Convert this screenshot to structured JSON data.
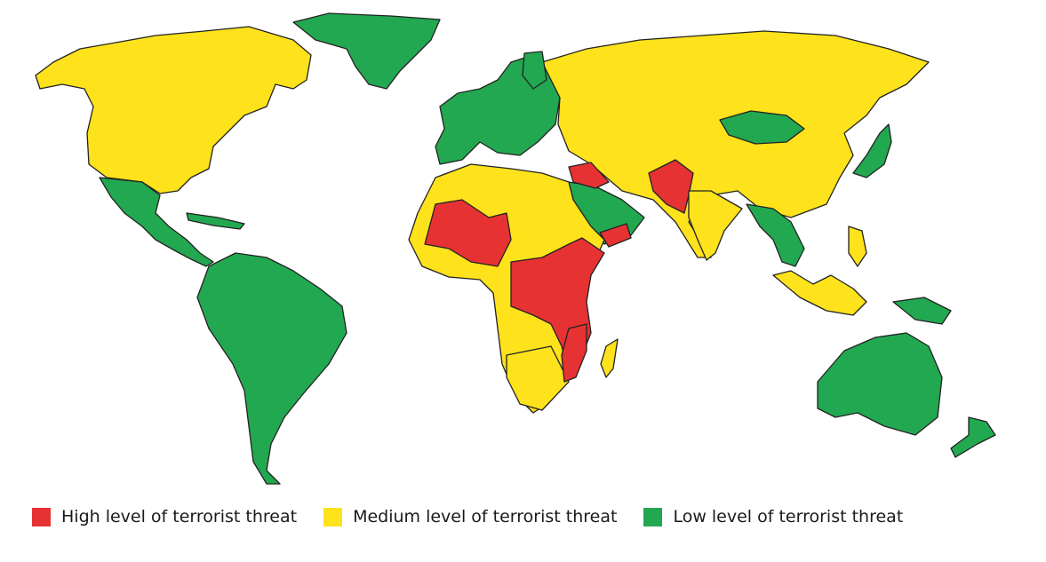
{
  "colors": {
    "high": "#e63232",
    "medium": "#fde21c",
    "low": "#22a851",
    "water": "#ffffff"
  },
  "legend": {
    "high_label": "High level of terrorist threat",
    "medium_label": "Medium level of terrorist threat",
    "low_label": "Low level of terrorist threat"
  }
}
